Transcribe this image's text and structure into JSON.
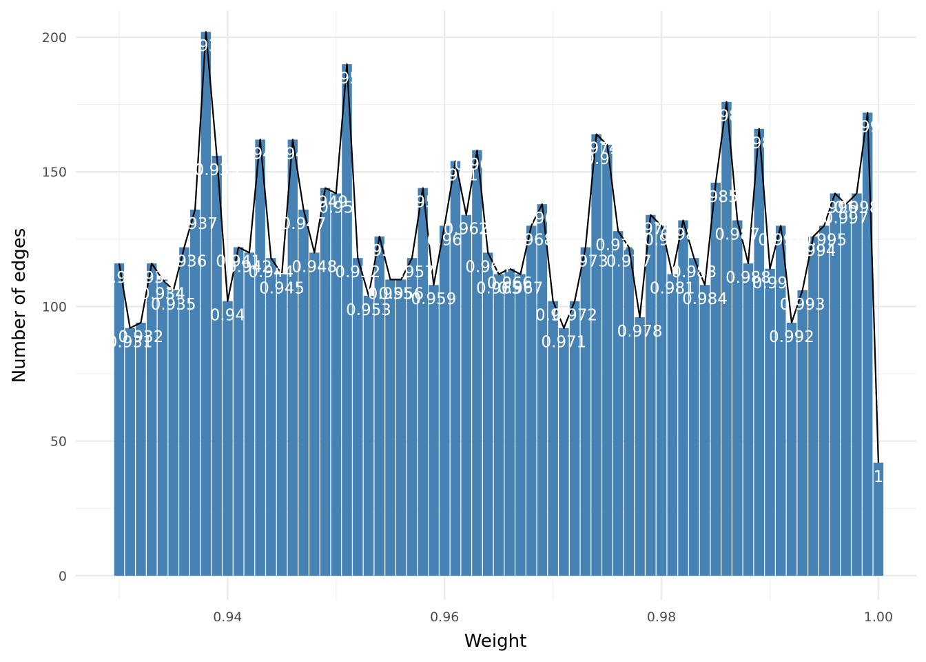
{
  "chart_data": {
    "type": "bar",
    "xlabel": "Weight",
    "ylabel": "Number of edges",
    "x_ticks": [
      "0.94",
      "0.96",
      "0.98",
      "1.00"
    ],
    "x_tick_values": [
      0.94,
      0.96,
      0.98,
      1.0
    ],
    "y_ticks": [
      "0",
      "50",
      "100",
      "150",
      "200"
    ],
    "y_tick_values": [
      0,
      50,
      100,
      150,
      200
    ],
    "xlim": [
      0.926,
      1.0035
    ],
    "ylim": [
      -9,
      210
    ],
    "grid": true,
    "bar_width": 0.00092,
    "bar_color": "#4682B4",
    "line_color": "#000000",
    "label_color": "#ffffff",
    "x": [
      0.93,
      0.931,
      0.932,
      0.933,
      0.934,
      0.935,
      0.936,
      0.937,
      0.938,
      0.939,
      0.94,
      0.941,
      0.942,
      0.943,
      0.944,
      0.945,
      0.946,
      0.947,
      0.948,
      0.949,
      0.95,
      0.951,
      0.952,
      0.953,
      0.954,
      0.955,
      0.956,
      0.957,
      0.958,
      0.959,
      0.96,
      0.961,
      0.962,
      0.963,
      0.964,
      0.965,
      0.966,
      0.967,
      0.968,
      0.969,
      0.97,
      0.971,
      0.972,
      0.973,
      0.974,
      0.975,
      0.976,
      0.977,
      0.978,
      0.979,
      0.98,
      0.981,
      0.982,
      0.983,
      0.984,
      0.985,
      0.986,
      0.987,
      0.988,
      0.989,
      0.99,
      0.991,
      0.992,
      0.993,
      0.994,
      0.995,
      0.996,
      0.997,
      0.998,
      0.999,
      1.0
    ],
    "values": [
      116,
      92,
      94,
      116,
      110,
      106,
      122,
      136,
      202,
      156,
      102,
      122,
      120,
      162,
      118,
      112,
      162,
      136,
      120,
      144,
      142,
      190,
      118,
      104,
      126,
      110,
      110,
      118,
      144,
      108,
      130,
      154,
      134,
      158,
      120,
      112,
      114,
      112,
      130,
      138,
      102,
      92,
      102,
      122,
      164,
      160,
      128,
      122,
      96,
      134,
      130,
      112,
      132,
      118,
      108,
      146,
      176,
      132,
      116,
      166,
      114,
      130,
      94,
      106,
      126,
      130,
      142,
      138,
      142,
      172,
      42
    ],
    "labels": [
      "0.93",
      "0.931",
      "0.932",
      "0.933",
      "0.934",
      "0.935",
      "0.936",
      "0.937",
      "0.938",
      "0.939",
      "0.94",
      "0.941",
      "0.942",
      "0.943",
      "0.944",
      "0.945",
      "0.946",
      "0.947",
      "0.948",
      "0.949",
      "0.95",
      "0.951",
      "0.952",
      "0.953",
      "0.954",
      "0.955",
      "0.956",
      "0.957",
      "0.958",
      "0.959",
      "0.96",
      "0.961",
      "0.962",
      "0.963",
      "0.964",
      "0.965",
      "0.966",
      "0.967",
      "0.968",
      "0.969",
      "0.97",
      "0.971",
      "0.972",
      "0.973",
      "0.974",
      "0.975",
      "0.976",
      "0.977",
      "0.978",
      "0.979",
      "0.98",
      "0.981",
      "0.982",
      "0.983",
      "0.984",
      "0.985",
      "0.986",
      "0.987",
      "0.988",
      "0.989",
      "0.99",
      "0.991",
      "0.992",
      "0.993",
      "0.994",
      "0.995",
      "0.996",
      "0.997",
      "0.998",
      "0.999",
      "1"
    ]
  }
}
